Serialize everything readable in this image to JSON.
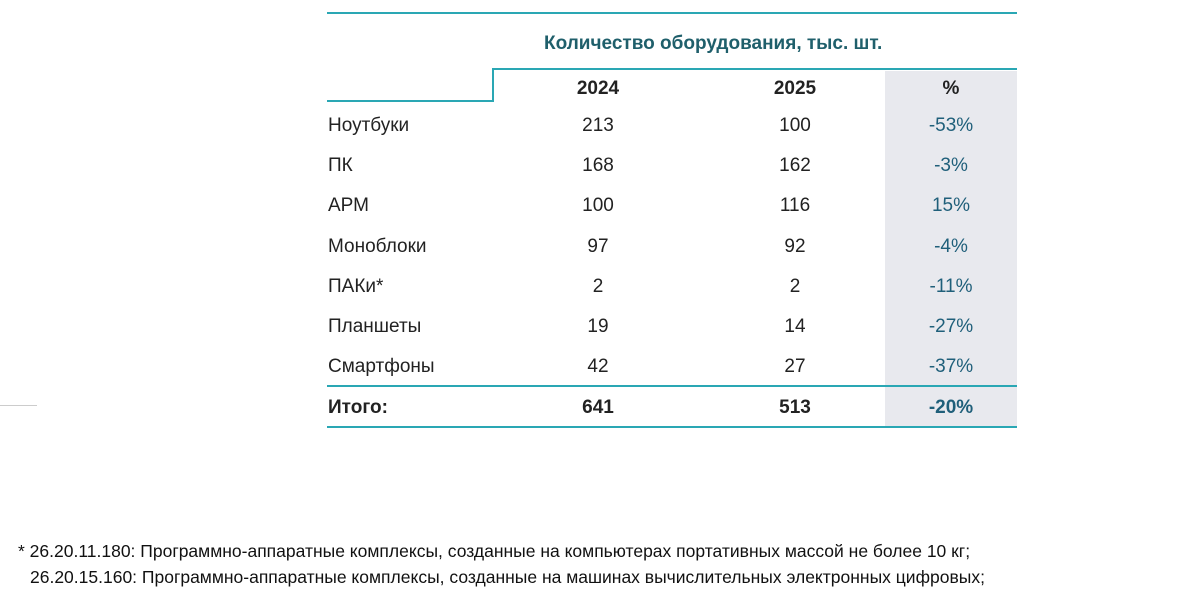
{
  "header": {
    "title": "Количество оборудования, тыс. шт."
  },
  "table": {
    "columns": [
      "2024",
      "2025",
      "%"
    ],
    "rows": [
      [
        "Ноутбуки",
        "213",
        "100",
        "-53%"
      ],
      [
        "ПК",
        "168",
        "162",
        "-3%"
      ],
      [
        "АРМ",
        "100",
        "116",
        "15%"
      ],
      [
        "Моноблоки",
        "97",
        "92",
        "-4%"
      ],
      [
        "ПАКи*",
        "2",
        "2",
        "-11%"
      ],
      [
        "Планшеты",
        "19",
        "14",
        "-27%"
      ],
      [
        "Смартфоны",
        "42",
        "27",
        "-37%"
      ]
    ],
    "total": [
      "Итого:",
      "641",
      "513",
      "-20%"
    ]
  },
  "footnote": [
    "* 26.20.11.180: Программно-аппаратные комплексы, созданные на компьютерах портативных массой не более 10 кг;",
    "26.20.15.160: Программно-аппаратные комплексы, созданные на машинах вычислительных электронных цифровых;"
  ]
}
